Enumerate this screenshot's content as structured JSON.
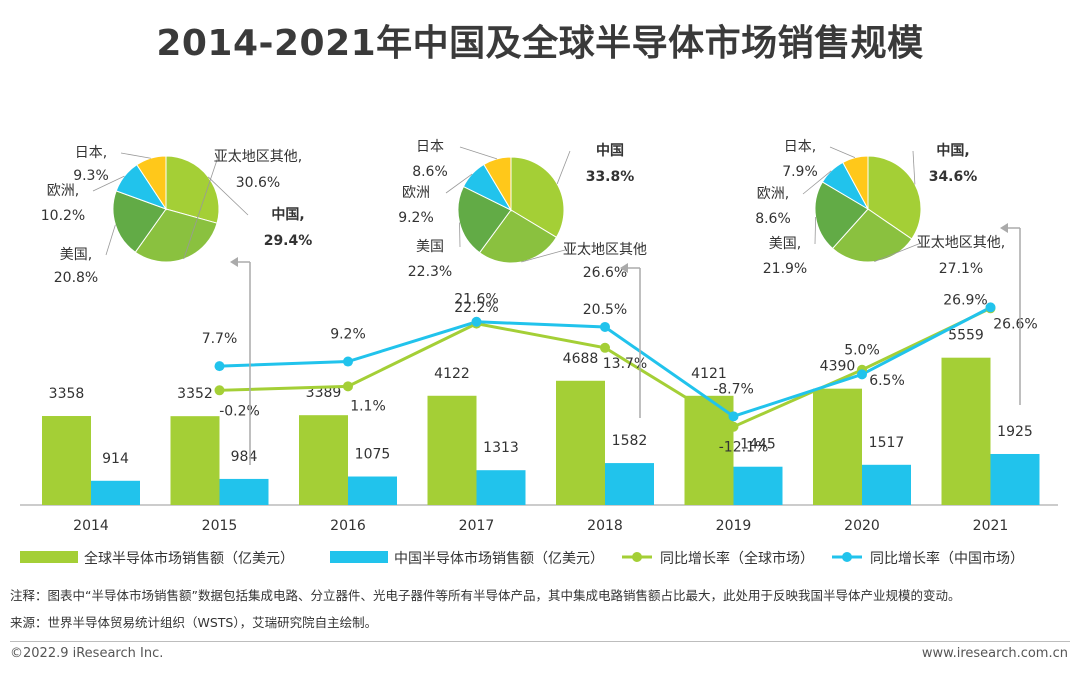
{
  "title": "2014-2021年中国及全球半导体市场销售规模",
  "chart_data": {
    "type": "bar",
    "categories": [
      "2014",
      "2015",
      "2016",
      "2017",
      "2018",
      "2019",
      "2020",
      "2021"
    ],
    "series": [
      {
        "name": "全球半导体市场销售额（亿美元）",
        "type": "bar",
        "color": "#a4cf36",
        "values": [
          3358,
          3352,
          3389,
          4122,
          4688,
          4121,
          4390,
          5559
        ]
      },
      {
        "name": "中国半导体市场销售额（亿美元）",
        "type": "bar",
        "color": "#21c3ec",
        "values": [
          914,
          984,
          1075,
          1313,
          1582,
          1445,
          1517,
          1925
        ]
      },
      {
        "name": "同比增长率（全球市场）",
        "type": "line",
        "color": "#a4cf36",
        "values": [
          null,
          -0.2,
          1.1,
          21.6,
          13.7,
          -12.1,
          6.5,
          26.6
        ],
        "labels": [
          null,
          "-0.2%",
          "1.1%",
          "21.6%",
          "13.7%",
          "-12.1%",
          "6.5%",
          "26.6%"
        ]
      },
      {
        "name": "同比增长率（中国市场）",
        "type": "line",
        "color": "#21c3ec",
        "values": [
          null,
          7.7,
          9.2,
          22.2,
          20.5,
          -8.7,
          5.0,
          26.9
        ],
        "labels": [
          null,
          "7.7%",
          "9.2%",
          "22.2%",
          "20.5%",
          "-8.7%",
          "5.0%",
          "26.9%"
        ]
      }
    ],
    "pies": [
      {
        "year": "2015",
        "slices": [
          {
            "label": "中国,",
            "pct": "29.4%",
            "value": 29.4,
            "color": "#a4cf36",
            "bold": true
          },
          {
            "label": "亚太地区其他,",
            "pct": "30.6%",
            "value": 30.6,
            "color": "#8ac13f"
          },
          {
            "label": "美国,",
            "pct": "20.8%",
            "value": 20.8,
            "color": "#62ab46"
          },
          {
            "label": "欧洲,",
            "pct": "10.2%",
            "value": 10.2,
            "color": "#21c3ec"
          },
          {
            "label": "日本,",
            "pct": "9.3%",
            "value": 9.3,
            "color": "#ffc81a"
          }
        ]
      },
      {
        "year": "2018",
        "slices": [
          {
            "label": "中国",
            "pct": "33.8%",
            "value": 33.8,
            "color": "#a4cf36",
            "bold": true
          },
          {
            "label": "亚太地区其他",
            "pct": "26.6%",
            "value": 26.6,
            "color": "#8ac13f"
          },
          {
            "label": "美国",
            "pct": "22.3%",
            "value": 22.3,
            "color": "#62ab46"
          },
          {
            "label": "欧洲",
            "pct": "9.2%",
            "value": 9.2,
            "color": "#21c3ec"
          },
          {
            "label": "日本",
            "pct": "8.6%",
            "value": 8.6,
            "color": "#ffc81a"
          }
        ]
      },
      {
        "year": "2021",
        "slices": [
          {
            "label": "中国,",
            "pct": "34.6%",
            "value": 34.6,
            "color": "#a4cf36",
            "bold": true
          },
          {
            "label": "亚太地区其他,",
            "pct": "27.1%",
            "value": 27.1,
            "color": "#8ac13f"
          },
          {
            "label": "美国,",
            "pct": "21.9%",
            "value": 21.9,
            "color": "#62ab46"
          },
          {
            "label": "欧洲,",
            "pct": "8.6%",
            "value": 8.6,
            "color": "#21c3ec"
          },
          {
            "label": "日本,",
            "pct": "7.9%",
            "value": 7.9,
            "color": "#ffc81a"
          }
        ]
      }
    ],
    "legend_position": "bottom",
    "grid": false
  },
  "note": "注释：图表中“半导体市场销售额”数据包括集成电路、分立器件、光电子器件等所有半导体产品，其中集成电路销售额占比最大，此处用于反映我国半导体产业规模的变动。",
  "source": "来源：世界半导体贸易统计组织（WSTS），艾瑞研究院自主绘制。",
  "footer_left": "©2022.9 iResearch Inc.",
  "footer_right": "www.iresearch.com.cn"
}
